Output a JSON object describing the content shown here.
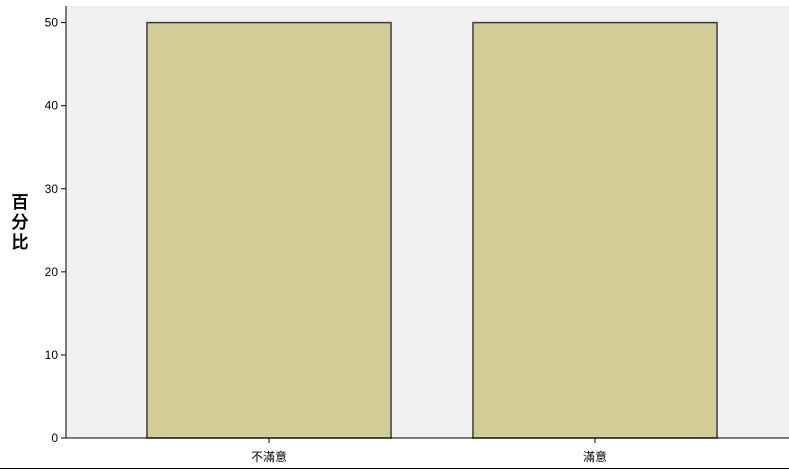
{
  "chart_data": {
    "type": "bar",
    "categories": [
      "不滿意",
      "滿意"
    ],
    "values": [
      50,
      50
    ],
    "title": "",
    "xlabel": "",
    "ylabel": "百分比",
    "ylim": [
      0,
      52
    ],
    "yticks": [
      0,
      10,
      20,
      30,
      40,
      50
    ],
    "grid": false,
    "colors": {
      "plot_background": "#F0F0F0",
      "bar_fill": "#D2CC96",
      "bar_stroke": "#3C3C3C",
      "axis": "#000000"
    }
  }
}
